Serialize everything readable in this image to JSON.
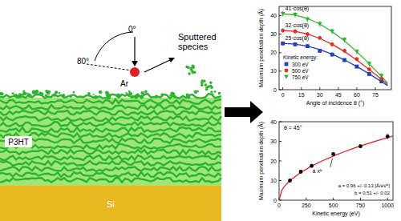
{
  "diagram": {
    "labels": {
      "angle_max": "80°",
      "angle_min": "0°",
      "ion": "Ar",
      "sputtered": [
        "Sputtered",
        "species"
      ],
      "film": "P3HT",
      "substrate": "Si"
    }
  },
  "chart_data": [
    {
      "type": "scatter",
      "x_label": "Angle of incidence θ (°)",
      "y_label": "Maximum penetration depth (Å)",
      "xlim": [
        -3,
        88
      ],
      "ylim": [
        0,
        45
      ],
      "xticks": [
        0,
        15,
        30,
        45,
        60,
        75
      ],
      "yticks": [
        0,
        10,
        20,
        30,
        40
      ],
      "grid": false,
      "legend": "lower left",
      "legend_title": "Kinetic energy:",
      "series": [
        {
          "name": "41·cos(θ)",
          "type": "line",
          "color": "#2db42d",
          "x": [
            0,
            10,
            20,
            30,
            40,
            50,
            60,
            70,
            80,
            85
          ],
          "values": [
            41,
            40.4,
            38.5,
            35.5,
            31.4,
            26.4,
            20.5,
            14,
            7.1,
            3.6
          ]
        },
        {
          "name": "32·cos(θ)",
          "type": "line",
          "color": "#e0301e",
          "x": [
            0,
            10,
            20,
            30,
            40,
            50,
            60,
            70,
            80,
            85
          ],
          "values": [
            32,
            31.5,
            30.1,
            27.7,
            24.5,
            20.6,
            16,
            10.9,
            5.6,
            2.8
          ]
        },
        {
          "name": "25·cos(θ)",
          "type": "line",
          "color": "#1f3fbf",
          "x": [
            0,
            10,
            20,
            30,
            40,
            50,
            60,
            70,
            80,
            85
          ],
          "values": [
            25,
            24.6,
            23.5,
            21.7,
            19.2,
            16.1,
            12.5,
            8.6,
            4.3,
            2.2
          ]
        },
        {
          "name": "300 eV",
          "type": "scatter",
          "marker": "square",
          "color": "#1f3fbf",
          "x": [
            0,
            10,
            20,
            30,
            40,
            50,
            60,
            70,
            80
          ],
          "values": [
            25,
            24.5,
            23.5,
            21,
            19,
            16,
            12.5,
            8.5,
            4.5
          ],
          "errors": [
            1,
            1,
            1,
            1,
            1,
            1,
            1,
            1,
            1
          ]
        },
        {
          "name": "500 eV",
          "type": "scatter",
          "marker": "circle",
          "color": "#e0301e",
          "x": [
            0,
            10,
            20,
            30,
            40,
            50,
            60,
            70,
            80
          ],
          "values": [
            32,
            31.5,
            30,
            28,
            24.5,
            21,
            16.5,
            11,
            6
          ],
          "errors": [
            1.2,
            1.2,
            1.2,
            1.2,
            1.2,
            1.2,
            1.2,
            1.2,
            1.2
          ]
        },
        {
          "name": "750 eV",
          "type": "scatter",
          "marker": "triangle",
          "color": "#2db42d",
          "x": [
            0,
            10,
            20,
            30,
            40,
            50,
            60,
            70,
            80
          ],
          "values": [
            41,
            40.5,
            38,
            35.5,
            31.5,
            27,
            20.5,
            14,
            7.5
          ],
          "errors": [
            1.5,
            1.5,
            1.5,
            1.5,
            1.5,
            1.5,
            1.5,
            1.5,
            1.5
          ]
        }
      ]
    },
    {
      "type": "scatter",
      "subtitle": "θ = 45°",
      "x_label": "Kinetic energy (eV)",
      "y_label": "Maximum penetration depth (Å)",
      "xlim": [
        0,
        1050
      ],
      "ylim": [
        0,
        40
      ],
      "xticks": [
        0,
        250,
        500,
        750,
        1000
      ],
      "yticks": [
        0,
        10,
        20,
        30,
        40
      ],
      "grid": false,
      "annotations": [
        "a = 0.96 +/- 0.13 [Å/eVᵇ]",
        "b = 0.51 +/- 0.02"
      ],
      "series": [
        {
          "name": "a xᵇ",
          "type": "line",
          "color": "#e02020",
          "x": [
            0,
            25,
            50,
            100,
            200,
            300,
            400,
            500,
            600,
            700,
            800,
            900,
            1000,
            1050
          ],
          "values": [
            0,
            5,
            7.1,
            10,
            14.2,
            17.4,
            20.1,
            22.5,
            24.7,
            26.7,
            28.5,
            30.3,
            31.9,
            32.7
          ]
        },
        {
          "type": "scatter",
          "marker": "circle",
          "color": "#000000",
          "x": [
            100,
            200,
            300,
            500,
            750,
            1000
          ],
          "values": [
            10,
            14.5,
            17.5,
            23.5,
            27.5,
            32.5
          ],
          "errors": [
            0.8,
            0.8,
            1,
            1,
            1,
            1.3
          ]
        }
      ]
    }
  ]
}
